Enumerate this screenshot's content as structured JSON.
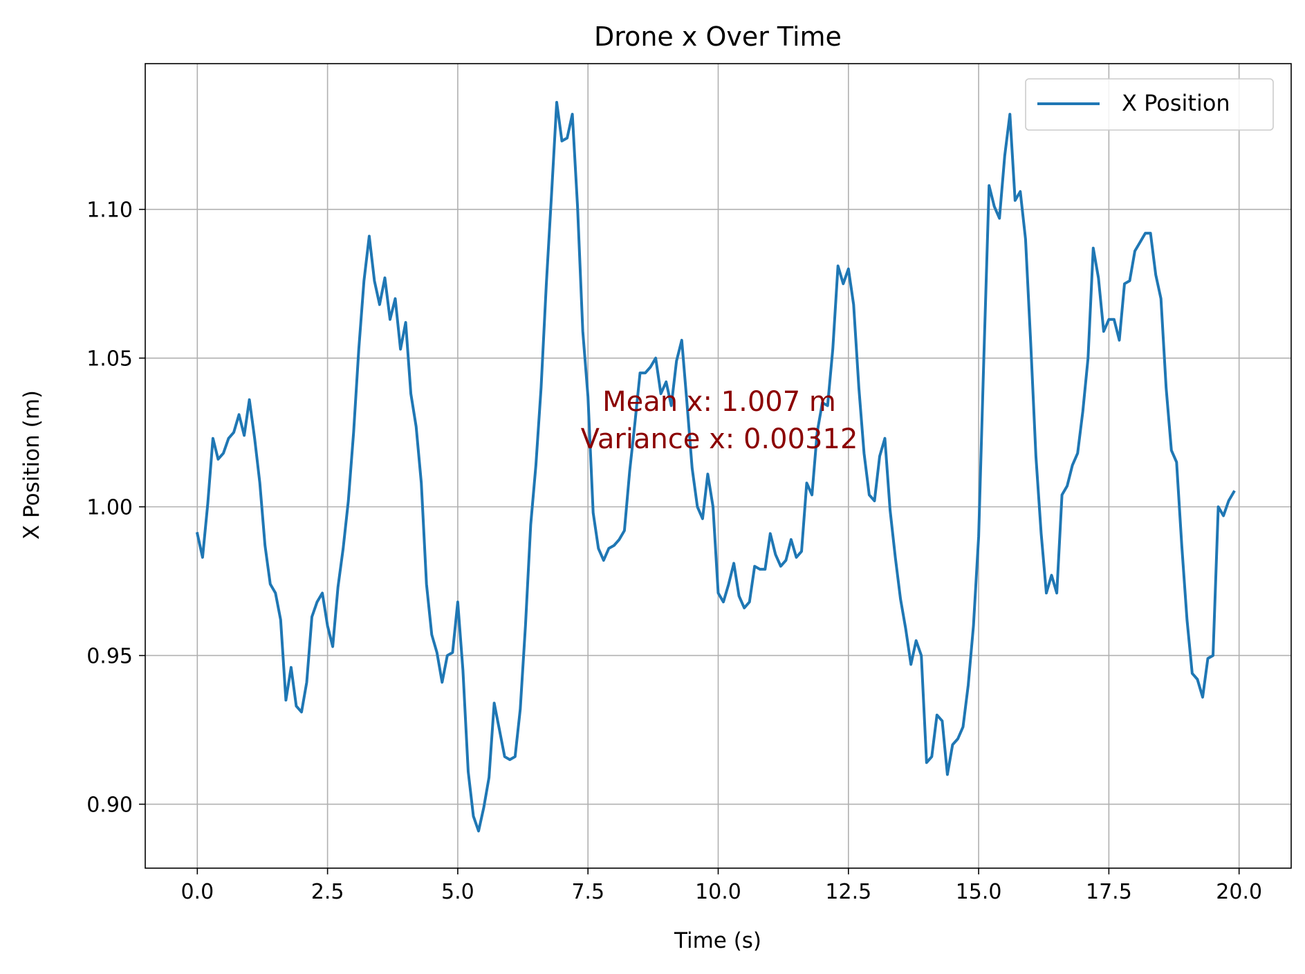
{
  "chart_data": {
    "type": "line",
    "title": "Drone x Over Time",
    "xlabel": "Time (s)",
    "ylabel": "X Position (m)",
    "xlim": [
      -1.0,
      21.0
    ],
    "ylim": [
      0.8785,
      1.149
    ],
    "xticks": [
      0.0,
      2.5,
      5.0,
      7.5,
      10.0,
      12.5,
      15.0,
      17.5,
      20.0
    ],
    "xtick_labels": [
      "0.0",
      "2.5",
      "5.0",
      "7.5",
      "10.0",
      "12.5",
      "15.0",
      "17.5",
      "20.0"
    ],
    "yticks": [
      0.9,
      0.95,
      1.0,
      1.05,
      1.1
    ],
    "ytick_labels": [
      "0.90",
      "0.95",
      "1.00",
      "1.05",
      "1.10"
    ],
    "grid": true,
    "legend": {
      "placement": "upper right",
      "entries": [
        "X Position"
      ]
    },
    "annotations": [
      "Mean x: 1.007 m",
      "Variance x: 0.00312"
    ],
    "colors": {
      "series": "#1f77b4",
      "annotation": "#8b0000",
      "grid": "#b0b0b0"
    },
    "series": [
      {
        "name": "X Position",
        "x": [
          0.0,
          0.1,
          0.2,
          0.3,
          0.4,
          0.5,
          0.6,
          0.7,
          0.8,
          0.9,
          1.0,
          1.1,
          1.2,
          1.3,
          1.4,
          1.5,
          1.6,
          1.7,
          1.8,
          1.9,
          2.0,
          2.1,
          2.2,
          2.3,
          2.4,
          2.5,
          2.6,
          2.7,
          2.8,
          2.9,
          3.0,
          3.1,
          3.2,
          3.3,
          3.4,
          3.5,
          3.6,
          3.7,
          3.8,
          3.9,
          4.0,
          4.1,
          4.2,
          4.3,
          4.4,
          4.5,
          4.6,
          4.7,
          4.8,
          4.9,
          5.0,
          5.1,
          5.2,
          5.3,
          5.4,
          5.5,
          5.6,
          5.7,
          5.8,
          5.9,
          6.0,
          6.1,
          6.2,
          6.3,
          6.4,
          6.5,
          6.6,
          6.7,
          6.8,
          6.9,
          7.0,
          7.1,
          7.2,
          7.3,
          7.4,
          7.5,
          7.6,
          7.7,
          7.8,
          7.9,
          8.0,
          8.1,
          8.2,
          8.3,
          8.4,
          8.5,
          8.6,
          8.7,
          8.8,
          8.9,
          9.0,
          9.1,
          9.2,
          9.3,
          9.4,
          9.5,
          9.6,
          9.7,
          9.8,
          9.9,
          10.0,
          10.1,
          10.2,
          10.3,
          10.4,
          10.5,
          10.6,
          10.7,
          10.8,
          10.9,
          11.0,
          11.1,
          11.2,
          11.3,
          11.4,
          11.5,
          11.6,
          11.7,
          11.8,
          11.9,
          12.0,
          12.1,
          12.2,
          12.3,
          12.4,
          12.5,
          12.6,
          12.7,
          12.8,
          12.9,
          13.0,
          13.1,
          13.2,
          13.3,
          13.4,
          13.5,
          13.6,
          13.7,
          13.8,
          13.9,
          14.0,
          14.1,
          14.2,
          14.3,
          14.4,
          14.5,
          14.6,
          14.7,
          14.8,
          14.9,
          15.0,
          15.1,
          15.2,
          15.3,
          15.4,
          15.5,
          15.6,
          15.7,
          15.8,
          15.9,
          16.0,
          16.1,
          16.2,
          16.3,
          16.4,
          16.5,
          16.6,
          16.7,
          16.8,
          16.9,
          17.0,
          17.1,
          17.2,
          17.3,
          17.4,
          17.5,
          17.6,
          17.7,
          17.8,
          17.9,
          18.0,
          18.1,
          18.2,
          18.3,
          18.4,
          18.5,
          18.6,
          18.7,
          18.8,
          18.9,
          19.0,
          19.1,
          19.2,
          19.3,
          19.4,
          19.5,
          19.6,
          19.7,
          19.8,
          19.9
        ],
        "y": [
          0.991,
          0.983,
          1.001,
          1.023,
          1.016,
          1.018,
          1.023,
          1.025,
          1.031,
          1.024,
          1.036,
          1.023,
          1.008,
          0.987,
          0.974,
          0.971,
          0.962,
          0.935,
          0.946,
          0.933,
          0.931,
          0.941,
          0.963,
          0.968,
          0.971,
          0.96,
          0.953,
          0.973,
          0.986,
          1.002,
          1.025,
          1.053,
          1.076,
          1.091,
          1.076,
          1.068,
          1.077,
          1.063,
          1.07,
          1.053,
          1.062,
          1.038,
          1.027,
          1.008,
          0.974,
          0.957,
          0.951,
          0.941,
          0.95,
          0.951,
          0.968,
          0.945,
          0.911,
          0.896,
          0.891,
          0.899,
          0.909,
          0.934,
          0.925,
          0.916,
          0.915,
          0.916,
          0.932,
          0.96,
          0.994,
          1.014,
          1.04,
          1.075,
          1.105,
          1.136,
          1.123,
          1.124,
          1.132,
          1.101,
          1.059,
          1.037,
          0.998,
          0.986,
          0.982,
          0.986,
          0.987,
          0.989,
          0.992,
          1.012,
          1.028,
          1.045,
          1.045,
          1.047,
          1.05,
          1.038,
          1.042,
          1.034,
          1.049,
          1.056,
          1.035,
          1.013,
          1.0,
          0.996,
          1.011,
          1.0,
          0.971,
          0.968,
          0.974,
          0.981,
          0.97,
          0.966,
          0.968,
          0.98,
          0.979,
          0.979,
          0.991,
          0.984,
          0.98,
          0.982,
          0.989,
          0.983,
          0.985,
          1.008,
          1.004,
          1.025,
          1.035,
          1.034,
          1.053,
          1.081,
          1.075,
          1.08,
          1.068,
          1.04,
          1.018,
          1.004,
          1.002,
          1.017,
          1.023,
          0.999,
          0.983,
          0.969,
          0.959,
          0.947,
          0.955,
          0.95,
          0.914,
          0.916,
          0.93,
          0.928,
          0.91,
          0.92,
          0.922,
          0.926,
          0.94,
          0.96,
          0.99,
          1.05,
          1.108,
          1.101,
          1.097,
          1.118,
          1.132,
          1.103,
          1.106,
          1.09,
          1.055,
          1.017,
          0.991,
          0.971,
          0.977,
          0.971,
          1.004,
          1.007,
          1.014,
          1.018,
          1.032,
          1.05,
          1.087,
          1.077,
          1.059,
          1.063,
          1.063,
          1.056,
          1.075,
          1.076,
          1.086,
          1.089,
          1.092,
          1.092,
          1.078,
          1.07,
          1.04,
          1.019,
          1.015,
          0.987,
          0.962,
          0.944,
          0.942,
          0.936,
          0.949,
          0.95,
          1.0,
          0.997,
          1.002,
          1.005
        ]
      }
    ]
  }
}
